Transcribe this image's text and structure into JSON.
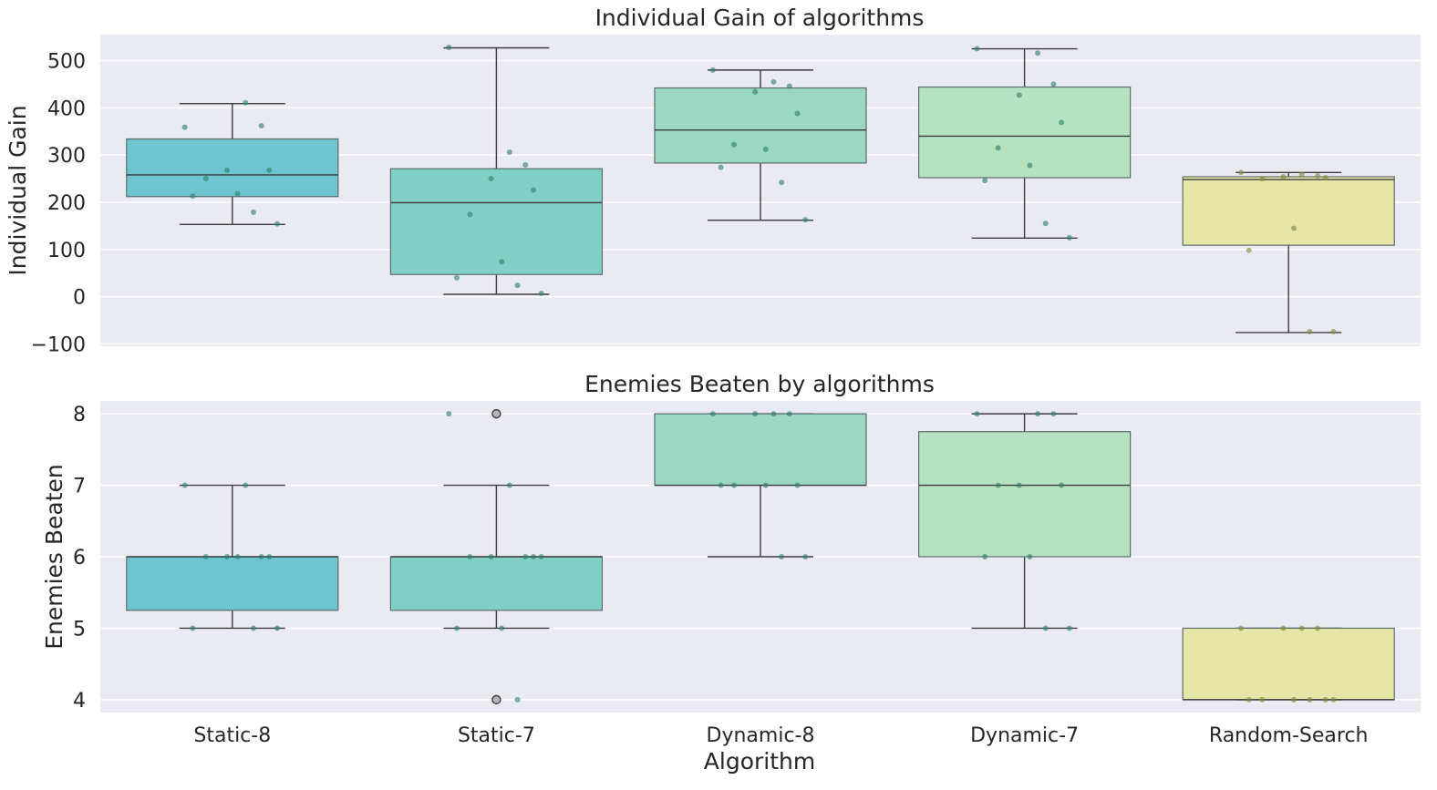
{
  "chart_data": [
    {
      "type": "box",
      "title": "Individual Gain of algorithms",
      "xlabel": "",
      "ylabel": "Individual Gain",
      "ylim": [
        -105,
        555
      ],
      "yticks": [
        -100,
        0,
        100,
        200,
        300,
        400,
        500
      ],
      "ytick_labels": [
        "−100",
        "0",
        "100",
        "200",
        "300",
        "400",
        "500"
      ],
      "grid": true,
      "categories": [
        "Static-8",
        "Static-7",
        "Dynamic-8",
        "Dynamic-7",
        "Random-Search"
      ],
      "colors": [
        "#6cc5cf",
        "#80d0c8",
        "#9bd8c4",
        "#b5e3bf",
        "#e6e6a8"
      ],
      "boxes": [
        {
          "whisker_low": 153,
          "q1": 212,
          "median": 258,
          "q3": 334,
          "whisker_high": 409,
          "outliers": []
        },
        {
          "whisker_low": 5,
          "q1": 47,
          "median": 199,
          "q3": 271,
          "whisker_high": 527,
          "outliers": []
        },
        {
          "whisker_low": 162,
          "q1": 283,
          "median": 353,
          "q3": 442,
          "whisker_high": 480,
          "outliers": []
        },
        {
          "whisker_low": 124,
          "q1": 252,
          "median": 340,
          "q3": 444,
          "whisker_high": 525,
          "outliers": []
        },
        {
          "whisker_low": -76,
          "q1": 109,
          "median": 248,
          "q3": 254,
          "whisker_high": 263,
          "outliers": []
        }
      ],
      "points": [
        [
          359,
          411,
          362,
          268,
          268,
          250,
          218,
          213,
          179,
          154
        ],
        [
          528,
          306,
          279,
          250,
          226,
          174,
          74,
          40,
          24,
          7
        ],
        [
          480,
          455,
          446,
          434,
          388,
          322,
          312,
          274,
          242,
          163
        ],
        [
          525,
          516,
          450,
          427,
          369,
          315,
          278,
          246,
          155,
          125
        ],
        [
          263,
          259,
          256,
          254,
          252,
          250,
          145,
          98,
          -74,
          -74
        ]
      ]
    },
    {
      "type": "box",
      "title": "Enemies Beaten by algorithms",
      "xlabel": "Algorithm",
      "ylabel": "Enemies Beaten",
      "ylim": [
        3.82,
        8.18
      ],
      "yticks": [
        4,
        5,
        6,
        7,
        8
      ],
      "ytick_labels": [
        "4",
        "5",
        "6",
        "7",
        "8"
      ],
      "grid": true,
      "categories": [
        "Static-8",
        "Static-7",
        "Dynamic-8",
        "Dynamic-7",
        "Random-Search"
      ],
      "category_labels": [
        "Static-8",
        "Static-7",
        "Dynamic-8",
        "Dynamic-7",
        "Random-Search"
      ],
      "colors": [
        "#6cc5cf",
        "#80d0c8",
        "#9bd8c4",
        "#b5e3bf",
        "#e6e6a8"
      ],
      "boxes": [
        {
          "whisker_low": 5,
          "q1": 5.25,
          "median": 6,
          "q3": 6,
          "whisker_high": 7,
          "outliers": []
        },
        {
          "whisker_low": 5,
          "q1": 5.25,
          "median": 6,
          "q3": 6,
          "whisker_high": 7,
          "outliers": [
            8,
            4
          ]
        },
        {
          "whisker_low": 6,
          "q1": 7,
          "median": 7,
          "q3": 8,
          "whisker_high": 8,
          "outliers": []
        },
        {
          "whisker_low": 5,
          "q1": 6,
          "median": 7,
          "q3": 7.75,
          "whisker_high": 8,
          "outliers": []
        },
        {
          "whisker_low": 4,
          "q1": 4,
          "median": 4,
          "q3": 5,
          "whisker_high": 5,
          "outliers": []
        }
      ],
      "points": [
        [
          7,
          7,
          6,
          6,
          6,
          6,
          6,
          5,
          5,
          5
        ],
        [
          8,
          7,
          6,
          6,
          6,
          6,
          5,
          5,
          4,
          6
        ],
        [
          8,
          8,
          8,
          8,
          7,
          7,
          7,
          7,
          6,
          6
        ],
        [
          8,
          8,
          8,
          7,
          7,
          7,
          6,
          6,
          5,
          5
        ],
        [
          5,
          5,
          5,
          5,
          4,
          4,
          4,
          4,
          4,
          4
        ]
      ]
    }
  ]
}
